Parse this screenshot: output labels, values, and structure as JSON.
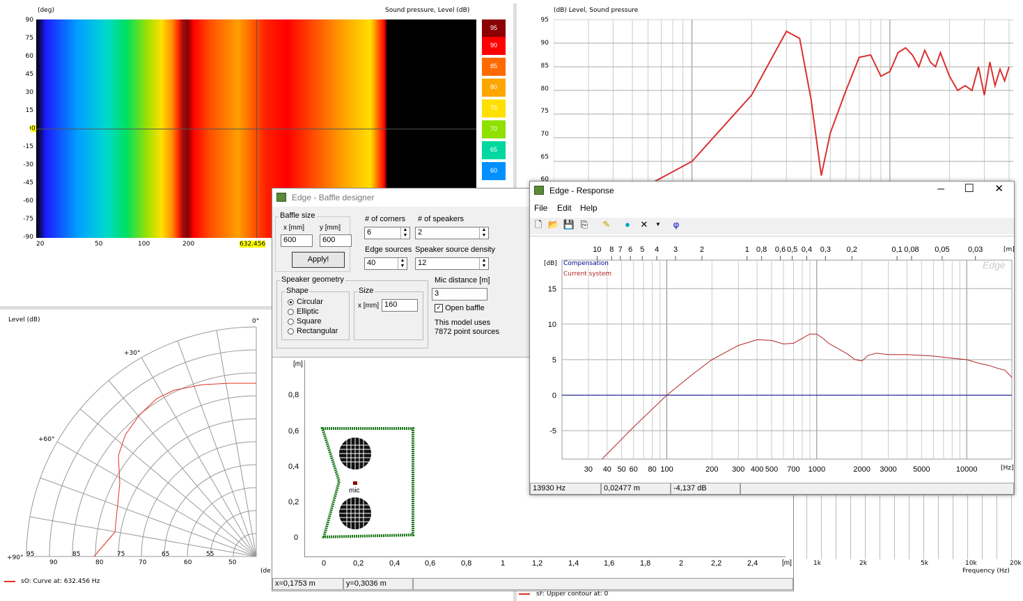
{
  "contour": {
    "y_title": "(deg)",
    "z_title": "Sound pressure, Level  (dB)",
    "y_ticks": [
      "90",
      "75",
      "60",
      "45",
      "30",
      "15",
      "0",
      "-15",
      "-30",
      "-45",
      "-60",
      "-75",
      "-90"
    ],
    "x_ticks": [
      "20",
      "50",
      "100",
      "200",
      "632.456"
    ],
    "marker_left": "0",
    "colorbar": [
      "95",
      "90",
      "85",
      "80",
      "75",
      "70",
      "65",
      "60"
    ]
  },
  "freq_plot": {
    "title": "(dB)  Level, Sound pressure",
    "y_ticks": [
      "95",
      "90",
      "85",
      "80",
      "75",
      "70",
      "65",
      "60"
    ],
    "x_ticks": [
      "1k",
      "2k",
      "5k",
      "10k",
      "20k"
    ],
    "xlabel": "Frequency  (Hz)",
    "chart_data": {
      "type": "line",
      "title": "(dB)  Level, Sound pressure",
      "xlabel": "Frequency  (Hz)",
      "ylabel": "(dB)",
      "ylim": [
        60,
        95
      ],
      "series": [
        {
          "x": [
            60,
            100,
            200,
            300,
            350,
            400,
            450,
            500,
            600,
            700,
            800,
            900,
            1000,
            1100,
            1200,
            1300,
            1400,
            1500,
            1600,
            1700,
            1800,
            2000,
            2200,
            2400,
            2600,
            2800,
            3000,
            3200,
            3400,
            3600,
            3800,
            4000
          ],
          "y": [
            60,
            65,
            79,
            92.5,
            91,
            78,
            62,
            71,
            80,
            87,
            87.5,
            83,
            84,
            88,
            89,
            87.5,
            85,
            88.5,
            86,
            85,
            88,
            83,
            80,
            81,
            80,
            85,
            79,
            86,
            81,
            84.5,
            82,
            85
          ]
        }
      ]
    }
  },
  "polar": {
    "title": "Level  (dB)",
    "angle_labels": [
      "0°",
      "+30°",
      "+60°",
      "+90°"
    ],
    "radial_ticks": [
      "95",
      "90",
      "85",
      "80",
      "75",
      "70",
      "65",
      "60",
      "55",
      "50"
    ],
    "legend": "sO: Curve at: 632.456 Hz",
    "bottom_label": "(de"
  },
  "bottom_legend": "sF: Upper contour at: 0",
  "baffle": {
    "title": "Edge - Baffle designer",
    "baffle_size_label": "Baffle size",
    "x_mm_label": "x [mm]",
    "y_mm_label": "y [mm]",
    "x_value": "600",
    "y_value": "600",
    "apply_label": "Apply!",
    "corners_label": "# of corners",
    "corners_value": "6",
    "speakers_label": "# of speakers",
    "speakers_value": "2",
    "edge_sources_label": "Edge sources",
    "edge_sources_value": "40",
    "density_label": "Speaker source density",
    "density_value": "12",
    "geometry_label": "Speaker geometry",
    "shape_label": "Shape",
    "shapes": [
      "Circular",
      "Elliptic",
      "Square",
      "Rectangular"
    ],
    "size_label": "Size",
    "size_x_label": "x [mm]",
    "size_value": "160",
    "mic_distance_label": "Mic distance [m]",
    "mic_distance_value": "3",
    "open_baffle_label": "Open baffle",
    "model_note_1": "This model uses",
    "model_note_2": "7872 point sources",
    "plot_unit_y": "[m]",
    "plot_unit_x": "[m]",
    "y_ticks": [
      "0,8",
      "0,6",
      "0,4",
      "0,2",
      "0"
    ],
    "x_ticks": [
      "0",
      "0,2",
      "0,4",
      "0,6",
      "0,8",
      "1",
      "1,2",
      "1,4",
      "1,6",
      "1,8",
      "2",
      "2,2",
      "2,4"
    ],
    "mic_label": "mic",
    "status_x": "x=0,1753 m",
    "status_y": "y=0,3036 m"
  },
  "response": {
    "title": "Edge - Response",
    "menu": [
      "File",
      "Edit",
      "Help"
    ],
    "top_ticks": [
      "10",
      "8",
      "7",
      "6",
      "5",
      "4",
      "3",
      "2",
      "1",
      "0,8",
      "0,6",
      "0,5",
      "0,4",
      "0,3",
      "0,2",
      "0,1",
      "0,08",
      "0,05",
      "0,03"
    ],
    "top_unit": "[m]",
    "y_unit": "[dB]",
    "y_ticks": [
      "15",
      "10",
      "5",
      "0",
      "-5"
    ],
    "x_ticks": [
      "30",
      "40",
      "50",
      "60",
      "80",
      "100",
      "200",
      "300",
      "400",
      "500",
      "700",
      "1000",
      "2000",
      "3000",
      "5000",
      "10000"
    ],
    "x_unit": "[Hz]",
    "legend_comp": "Compensation",
    "legend_current": "Current system",
    "watermark": "Edge",
    "status_freq": "13930 Hz",
    "status_dist": "0,02477 m",
    "status_db": "-4,137 dB",
    "colors": {
      "compensation": "#00008b",
      "current": "#b22222"
    },
    "chart_data": {
      "type": "line",
      "xlabel": "[Hz]",
      "ylabel": "[dB]",
      "ylim": [
        -9,
        19
      ],
      "series": [
        {
          "name": "Compensation",
          "x": [
            20,
            20000
          ],
          "y": [
            0,
            0
          ]
        },
        {
          "name": "Current system",
          "x": [
            37,
            60,
            100,
            150,
            200,
            300,
            400,
            500,
            600,
            700,
            800,
            900,
            1000,
            1100,
            1200,
            1400,
            1600,
            1800,
            2000,
            2200,
            2500,
            3000,
            4000,
            5000,
            6000,
            8000,
            10000,
            12000,
            14000,
            16000,
            18000,
            20000
          ],
          "y": [
            -9,
            -4.5,
            0,
            3,
            5,
            7,
            7.8,
            7.7,
            7.2,
            7.3,
            8,
            8.6,
            8.6,
            8,
            7.3,
            6.5,
            5.8,
            5,
            4.8,
            5.6,
            5.9,
            5.7,
            5.7,
            5.6,
            5.5,
            5.2,
            5,
            4.5,
            4.2,
            3.8,
            3.5,
            2.5
          ]
        }
      ]
    }
  }
}
